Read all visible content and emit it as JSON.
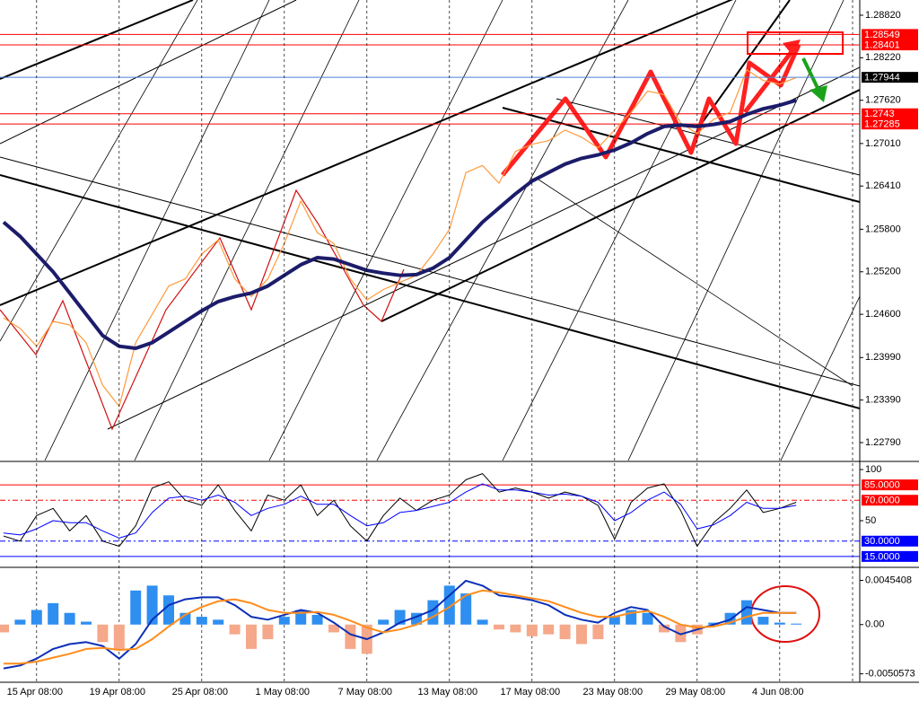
{
  "chart_data": [
    {
      "type": "line",
      "ylim": [
        1.22537,
        1.29035
      ],
      "yticks": [
        {
          "value": 1.2882,
          "label": "1.28820"
        },
        {
          "value": 1.2822,
          "label": "1.28220"
        },
        {
          "value": 1.2762,
          "label": "1.27620"
        },
        {
          "value": 1.2701,
          "label": "1.27010"
        },
        {
          "value": 1.2641,
          "label": "1.26410"
        },
        {
          "value": 1.258,
          "label": "1.25800"
        },
        {
          "value": 1.252,
          "label": "1.25200"
        },
        {
          "value": 1.246,
          "label": "1.24600"
        },
        {
          "value": 1.2399,
          "label": "1.23990"
        },
        {
          "value": 1.2339,
          "label": "1.23390"
        },
        {
          "value": 1.2279,
          "label": "1.22790"
        }
      ],
      "levels": [
        {
          "value": 1.28549,
          "line_color": "#ff0000",
          "box_color": "#ff0000"
        },
        {
          "value": 1.28401,
          "line_color": "#ff0000",
          "box_color": "#ff0000"
        },
        {
          "value": 1.27944,
          "line_color": "#4a7fd6",
          "box_color": "#000000"
        },
        {
          "value": 1.2743,
          "line_color": "#ff0000",
          "box_color": "#ff0000"
        },
        {
          "value": 1.27285,
          "line_color": "#ff0000",
          "box_color": "#ff0000"
        }
      ],
      "series": [
        {
          "color": "#ff9a3c",
          "width": 1.2,
          "values": [
            1.2455,
            1.244,
            1.2415,
            1.245,
            1.2445,
            1.242,
            1.236,
            1.233,
            1.242,
            1.246,
            1.25,
            1.251,
            1.2545,
            1.2565,
            1.251,
            1.2485,
            1.251,
            1.256,
            1.262,
            1.2575,
            1.256,
            1.251,
            1.248,
            1.2495,
            1.2505,
            1.2515,
            1.2545,
            1.258,
            1.266,
            1.267,
            1.2645,
            1.269,
            1.27,
            1.2705,
            1.272,
            1.271,
            1.2695,
            1.272,
            1.2745,
            1.2775,
            1.277,
            1.273,
            1.2715,
            1.2735,
            1.2745,
            1.2805,
            1.279,
            1.2785,
            1.2794
          ]
        },
        {
          "color": "#1c1c6b",
          "width": 4,
          "values": [
            1.259,
            1.257,
            1.2545,
            1.252,
            1.249,
            1.246,
            1.243,
            1.2415,
            1.2412,
            1.242,
            1.2435,
            1.245,
            1.2465,
            1.2478,
            1.2485,
            1.249,
            1.25,
            1.2515,
            1.253,
            1.254,
            1.2538,
            1.253,
            1.2522,
            1.2518,
            1.2515,
            1.2516,
            1.2525,
            1.254,
            1.2565,
            1.259,
            1.261,
            1.263,
            1.2648,
            1.266,
            1.2672,
            1.268,
            1.2685,
            1.2692,
            1.2702,
            1.2715,
            1.2725,
            1.2727,
            1.2725,
            1.2728,
            1.2732,
            1.2742,
            1.275,
            1.2755,
            1.2762
          ]
        }
      ]
    },
    {
      "type": "line",
      "ylim": [
        6.1,
        106.2
      ],
      "yticks": [
        100,
        50
      ],
      "levels": [
        {
          "value": 85,
          "label": "85.0000",
          "line_color": "#ff0000",
          "box_color": "#ff0000"
        },
        {
          "value": 70,
          "label": "70.0000",
          "line_color": "#ff0000",
          "box_color": "#ff0000",
          "dash": true
        },
        {
          "value": 30,
          "label": "30.0000",
          "line_color": "#0000ff",
          "box_color": "#0000ff",
          "dash": true
        },
        {
          "value": 15,
          "label": "15.0000",
          "line_color": "#0000ff",
          "box_color": "#0000ff"
        }
      ],
      "series": [
        {
          "color": "#000000",
          "width": 1,
          "values": [
            35,
            30,
            55,
            62,
            40,
            55,
            30,
            25,
            45,
            82,
            88,
            70,
            65,
            85,
            60,
            40,
            75,
            70,
            85,
            55,
            70,
            45,
            30,
            55,
            72,
            60,
            70,
            75,
            90,
            96,
            78,
            82,
            78,
            72,
            78,
            74,
            65,
            32,
            68,
            82,
            86,
            60,
            25,
            48,
            62,
            80,
            58,
            62,
            68
          ]
        },
        {
          "color": "#0000ff",
          "width": 1,
          "values": [
            38,
            36,
            42,
            50,
            48,
            48,
            40,
            33,
            38,
            58,
            72,
            74,
            70,
            75,
            68,
            55,
            62,
            66,
            74,
            66,
            66,
            55,
            45,
            48,
            58,
            60,
            64,
            68,
            78,
            86,
            80,
            80,
            78,
            75,
            76,
            74,
            68,
            50,
            58,
            70,
            78,
            66,
            42,
            46,
            55,
            68,
            62,
            62,
            65
          ]
        }
      ]
    },
    {
      "type": "bar",
      "ylim": [
        -0.0059213,
        0.0056928
      ],
      "yticks": [
        0.0045408,
        {
          "value": 0,
          "label": "0.00"
        },
        -0.0050573
      ],
      "categories": [
        null,
        null,
        "15 Apr 08:00",
        null,
        null,
        null,
        null,
        "19 Apr 08:00",
        null,
        null,
        null,
        null,
        "25 Apr 08:00",
        null,
        null,
        null,
        null,
        "1 May 08:00",
        null,
        null,
        null,
        null,
        "7 May 08:00",
        null,
        null,
        null,
        null,
        "13 May 08:00",
        null,
        null,
        null,
        null,
        "17 May 08:00",
        null,
        null,
        null,
        null,
        "23 May 08:00",
        null,
        null,
        null,
        null,
        "29 May 08:00",
        null,
        null,
        null,
        null,
        "4 Jun 08:00",
        null
      ],
      "xgrid": true,
      "positive_color": "#2e8ff0",
      "negative_color": "#f5a88a",
      "values": [
        -0.0008,
        0.0005,
        0.0015,
        0.0022,
        0.0012,
        0.0003,
        -0.0018,
        -0.0025,
        0.0035,
        0.004,
        0.003,
        0.0012,
        0.0008,
        0.0005,
        -0.001,
        -0.0025,
        -0.0015,
        0.0008,
        0.0015,
        0.001,
        -0.0008,
        -0.0025,
        -0.003,
        0.0005,
        0.0015,
        0.0012,
        0.0025,
        0.004,
        0.0032,
        0.0005,
        -0.0005,
        -0.0008,
        -0.0012,
        -0.001,
        -0.0015,
        -0.002,
        -0.0015,
        0.0008,
        0.0015,
        0.0012,
        -0.0008,
        -0.0018,
        -0.001,
        0.0002,
        0.0012,
        0.0025,
        0.0008,
        0.0002,
        0.0001
      ],
      "series": [
        {
          "color": "#0a2fb8",
          "width": 2,
          "values": [
            -0.0045,
            -0.0042,
            -0.0035,
            -0.0025,
            -0.002,
            -0.0018,
            -0.0022,
            -0.0035,
            -0.002,
            0.0005,
            0.002,
            0.0026,
            0.0028,
            0.0028,
            0.002,
            0.0008,
            0.0005,
            0.001,
            0.0015,
            0.0012,
            0.0002,
            -0.001,
            -0.0015,
            -0.0008,
            0.0002,
            0.0008,
            0.0015,
            0.003,
            0.0045,
            0.004,
            0.003,
            0.0028,
            0.0025,
            0.002,
            0.001,
            0.0005,
            0.0002,
            0.0012,
            0.0018,
            0.0015,
            -0.0002,
            -0.001,
            -0.0005,
            0,
            0.0005,
            0.0018,
            0.0015,
            0.0012,
            0.0012
          ]
        },
        {
          "color": "#ff8c1a",
          "width": 2,
          "values": [
            -0.004,
            -0.004,
            -0.0038,
            -0.0034,
            -0.003,
            -0.0025,
            -0.0024,
            -0.0026,
            -0.0025,
            -0.0015,
            -0.0002,
            0.001,
            0.0018,
            0.0024,
            0.0026,
            0.0022,
            0.0015,
            0.0012,
            0.0012,
            0.0013,
            0.001,
            0.0004,
            -0.0003,
            -0.0008,
            -0.0005,
            0,
            0.0008,
            0.0018,
            0.003,
            0.0035,
            0.0033,
            0.003,
            0.0027,
            0.0024,
            0.0018,
            0.0012,
            0.0008,
            0.0008,
            0.0012,
            0.0014,
            0.0008,
            0,
            -0.0003,
            -0.0002,
            0.0002,
            0.0008,
            0.0012,
            0.0012,
            0.0012
          ]
        }
      ]
    }
  ]
}
